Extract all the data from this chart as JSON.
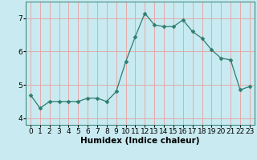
{
  "x": [
    0,
    1,
    2,
    3,
    4,
    5,
    6,
    7,
    8,
    9,
    10,
    11,
    12,
    13,
    14,
    15,
    16,
    17,
    18,
    19,
    20,
    21,
    22,
    23
  ],
  "y": [
    4.7,
    4.3,
    4.5,
    4.5,
    4.5,
    4.5,
    4.6,
    4.6,
    4.5,
    4.8,
    5.7,
    6.45,
    7.15,
    6.8,
    6.75,
    6.75,
    6.95,
    6.6,
    6.4,
    6.05,
    5.8,
    5.75,
    4.85,
    4.95
  ],
  "line_color": "#2e7d6e",
  "marker": "D",
  "marker_size": 2.5,
  "bg_color": "#c8eaf0",
  "grid_color": "#e8a0a0",
  "xlabel": "Humidex (Indice chaleur)",
  "ylim": [
    3.8,
    7.5
  ],
  "xlim": [
    -0.5,
    23.5
  ],
  "yticks": [
    4,
    5,
    6,
    7
  ],
  "xticks": [
    0,
    1,
    2,
    3,
    4,
    5,
    6,
    7,
    8,
    9,
    10,
    11,
    12,
    13,
    14,
    15,
    16,
    17,
    18,
    19,
    20,
    21,
    22,
    23
  ],
  "tick_label_fontsize": 6.5,
  "xlabel_fontsize": 7.5
}
